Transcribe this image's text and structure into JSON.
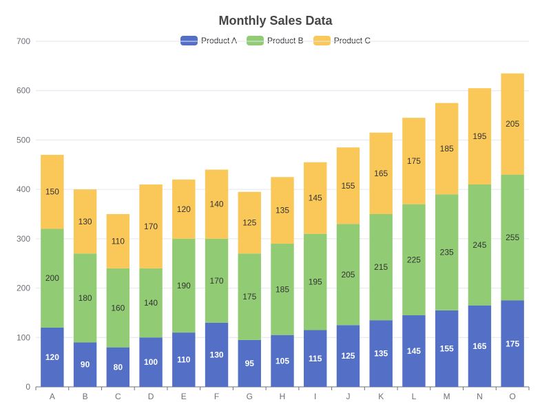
{
  "chart_data": {
    "type": "bar",
    "stacked": true,
    "title": "Monthly Sales Data",
    "categories": [
      "A",
      "B",
      "C",
      "D",
      "E",
      "F",
      "G",
      "H",
      "I",
      "J",
      "K",
      "L",
      "M",
      "N",
      "O"
    ],
    "series": [
      {
        "name": "Product A",
        "color": "#5470c6",
        "label_color": "#ffffff",
        "values": [
          120,
          90,
          80,
          100,
          110,
          130,
          95,
          105,
          115,
          125,
          135,
          145,
          155,
          165,
          175
        ]
      },
      {
        "name": "Product B",
        "color": "#91cc75",
        "label_color": "#333333",
        "values": [
          200,
          180,
          160,
          140,
          190,
          170,
          175,
          185,
          195,
          205,
          215,
          225,
          235,
          245,
          255
        ]
      },
      {
        "name": "Product C",
        "color": "#fac858",
        "label_color": "#333333",
        "values": [
          150,
          130,
          110,
          170,
          120,
          140,
          125,
          135,
          145,
          155,
          165,
          175,
          185,
          195,
          205
        ]
      }
    ],
    "ylim": [
      0,
      700
    ],
    "yticks": [
      0,
      100,
      200,
      300,
      400,
      500,
      600,
      700
    ],
    "grid": true,
    "legend_position": "top-center",
    "xlabel": "",
    "ylabel": ""
  }
}
